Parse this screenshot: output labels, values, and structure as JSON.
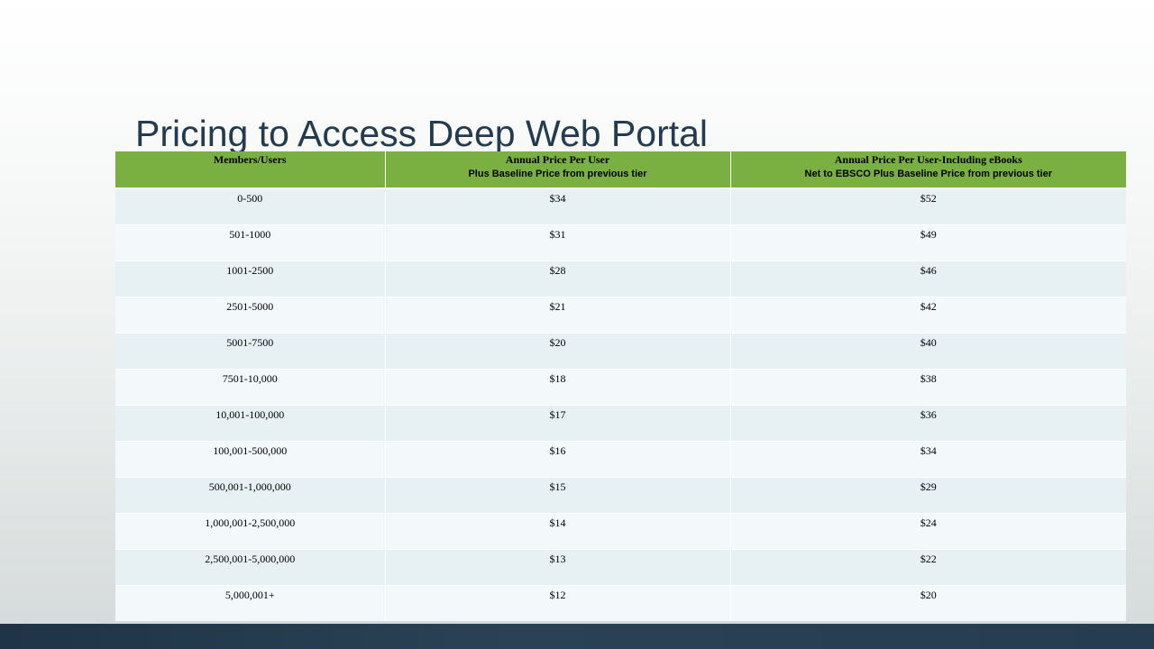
{
  "slide": {
    "title": "Pricing to Access Deep Web Portal"
  },
  "table": {
    "headers": [
      {
        "main": "Members/Users",
        "sub": ""
      },
      {
        "main": "Annual Price Per User",
        "sub": "Plus Baseline Price from previous tier"
      },
      {
        "main": "Annual Price Per User-Including  eBooks",
        "sub": "Net to EBSCO Plus Baseline Price from previous tier"
      }
    ],
    "rows": [
      [
        "0-500",
        "$34",
        "$52"
      ],
      [
        "501-1000",
        "$31",
        "$49"
      ],
      [
        "1001-2500",
        "$28",
        "$46"
      ],
      [
        "2501-5000",
        "$21",
        "$42"
      ],
      [
        "5001-7500",
        "$20",
        "$40"
      ],
      [
        "7501-10,000",
        "$18",
        "$38"
      ],
      [
        "10,001-100,000",
        "$17",
        "$36"
      ],
      [
        "100,001-500,000",
        "$16",
        "$34"
      ],
      [
        "500,001-1,000,000",
        "$15",
        "$29"
      ],
      [
        "1,000,001-2,500,000",
        "$14",
        "$24"
      ],
      [
        "2,500,001-5,000,000",
        "$13",
        "$22"
      ],
      [
        "5,000,001+",
        "$12",
        "$20"
      ]
    ]
  },
  "colors": {
    "header_bg": "#7ab041",
    "row_odd": "#e7f1f4",
    "row_even": "#f3f8fb",
    "title": "#243b4f",
    "bottom_band": "#263c50"
  }
}
